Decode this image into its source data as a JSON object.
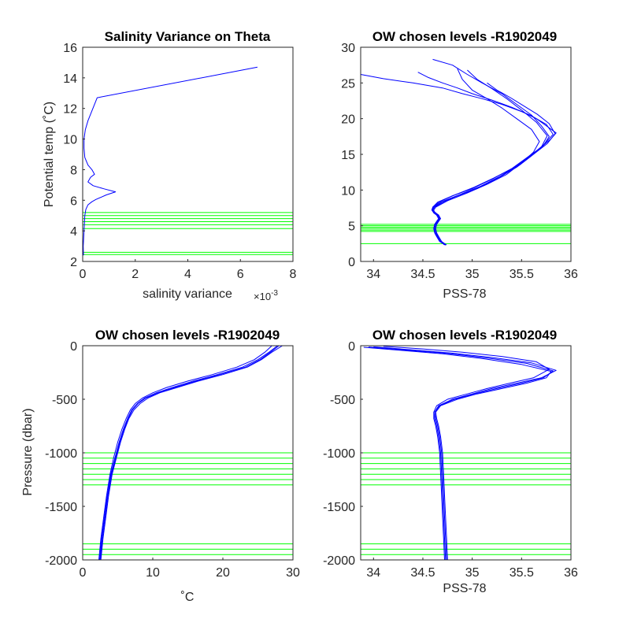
{
  "colors": {
    "profile": "#0000ff",
    "levels": "#00ff00",
    "axes": "#262626"
  },
  "chart_data": [
    {
      "type": "line",
      "title": "Salinity Variance on Theta",
      "xlabel": "salinity variance",
      "xlabel_multiplier": "×10",
      "xlabel_exponent": "-3",
      "ylabel": "Potential temp (˚C)",
      "xlim": [
        0,
        8
      ],
      "ylim": [
        2,
        16
      ],
      "xticks": [
        0,
        2,
        4,
        6,
        8
      ],
      "yticks": [
        2,
        4,
        6,
        8,
        10,
        12,
        14,
        16
      ],
      "grid": false,
      "series": [
        {
          "x": [
            0.03,
            0.02,
            0.05,
            0.08,
            0.12,
            0.2,
            0.35,
            0.5,
            0.7,
            0.9,
            1.25,
            0.8,
            0.4,
            0.2,
            0.3,
            0.45,
            0.35,
            0.2,
            0.08,
            0.05,
            0.05,
            0.1,
            0.2,
            0.55,
            6.65
          ],
          "y": [
            2.4,
            3.0,
            4.0,
            5.0,
            5.4,
            5.7,
            5.9,
            6.05,
            6.2,
            6.35,
            6.55,
            6.75,
            6.95,
            7.2,
            7.5,
            7.7,
            8.0,
            8.3,
            8.8,
            9.4,
            10.0,
            10.6,
            11.2,
            12.7,
            14.7
          ]
        }
      ],
      "levels": [
        2.45,
        2.6,
        4.15,
        4.4,
        4.6,
        4.8,
        5.0,
        5.2
      ]
    },
    {
      "type": "line",
      "title": "OW chosen levels -R1902049",
      "xlabel": "PSS-78",
      "ylabel": "",
      "xlim": [
        33.87,
        36
      ],
      "ylim": [
        0,
        30
      ],
      "xticks": [
        34,
        34.5,
        35,
        35.5,
        36
      ],
      "yticks": [
        0,
        5,
        10,
        15,
        20,
        25,
        30
      ],
      "grid": false,
      "series": [
        {
          "x": [
            34.73,
            34.68,
            34.65,
            34.63,
            34.62,
            34.63,
            34.65,
            34.67,
            34.66,
            34.63,
            34.6,
            34.6,
            34.65,
            34.8,
            35.0,
            35.2,
            35.4,
            35.55,
            35.7,
            35.8,
            35.85,
            35.75,
            35.65,
            35.5,
            35.3,
            35.1,
            34.9,
            34.7,
            34.4,
            34.1,
            33.87
          ],
          "y": [
            2.3,
            2.8,
            3.5,
            4.0,
            4.6,
            5.2,
            5.6,
            6.0,
            6.5,
            6.8,
            7.2,
            7.6,
            8.3,
            9.2,
            10.2,
            11.5,
            13.0,
            14.5,
            16.0,
            17.2,
            18.0,
            19.0,
            20.0,
            21.0,
            22.0,
            22.8,
            23.5,
            24.3,
            25.0,
            25.6,
            26.2
          ]
        },
        {
          "x": [
            34.73,
            34.67,
            34.64,
            34.62,
            34.61,
            34.62,
            34.64,
            34.66,
            34.64,
            34.61,
            34.59,
            34.6,
            34.68,
            34.85,
            35.05,
            35.25,
            35.45,
            35.6,
            35.72,
            35.78,
            35.7,
            35.6,
            35.45,
            35.3,
            35.1,
            34.95,
            34.8,
            34.6
          ],
          "y": [
            2.3,
            2.8,
            3.5,
            4.0,
            4.6,
            5.2,
            5.6,
            6.0,
            6.5,
            6.8,
            7.2,
            7.6,
            8.3,
            9.2,
            10.2,
            11.6,
            13.2,
            14.8,
            16.2,
            17.5,
            19.0,
            20.5,
            22.0,
            23.5,
            25.0,
            26.2,
            27.5,
            28.3
          ]
        },
        {
          "x": [
            34.74,
            34.69,
            34.66,
            34.64,
            34.63,
            34.64,
            34.66,
            34.68,
            34.66,
            34.62,
            34.61,
            34.63,
            34.75,
            34.95,
            35.15,
            35.35,
            35.5,
            35.62,
            35.68,
            35.6,
            35.45,
            35.3,
            35.15,
            35.0,
            34.9,
            34.85
          ],
          "y": [
            2.3,
            2.8,
            3.5,
            4.0,
            4.6,
            5.2,
            5.6,
            6.0,
            6.5,
            6.8,
            7.2,
            7.6,
            8.5,
            9.6,
            10.8,
            12.2,
            13.8,
            15.3,
            16.8,
            18.5,
            20.0,
            21.5,
            22.8,
            24.0,
            25.5,
            27.0
          ]
        },
        {
          "x": [
            34.72,
            34.68,
            34.65,
            34.63,
            34.62,
            34.63,
            34.65,
            34.67,
            34.65,
            34.62,
            34.6,
            34.61,
            34.7,
            34.88,
            35.08,
            35.28,
            35.45,
            35.6,
            35.72,
            35.82,
            35.75,
            35.6,
            35.4,
            35.2,
            35.0,
            34.85,
            34.7,
            34.55,
            34.45
          ],
          "y": [
            2.3,
            2.8,
            3.5,
            4.0,
            4.6,
            5.2,
            5.6,
            6.0,
            6.5,
            6.8,
            7.2,
            7.6,
            8.4,
            9.4,
            10.5,
            11.9,
            13.4,
            14.9,
            16.3,
            17.8,
            19.2,
            20.4,
            21.6,
            22.6,
            23.5,
            24.3,
            25.0,
            25.8,
            26.5
          ]
        },
        {
          "x": [
            34.73,
            34.68,
            34.65,
            34.63,
            34.62,
            34.63,
            34.65,
            34.67,
            34.65,
            34.62,
            34.6,
            34.6,
            34.66,
            34.82,
            35.02,
            35.22,
            35.42,
            35.58,
            35.7,
            35.76,
            35.65,
            35.5,
            35.35,
            35.2,
            35.05,
            34.95
          ],
          "y": [
            2.3,
            2.8,
            3.5,
            4.0,
            4.6,
            5.2,
            5.6,
            6.0,
            6.5,
            6.8,
            7.2,
            7.6,
            8.3,
            9.3,
            10.4,
            11.7,
            13.1,
            14.6,
            16.0,
            17.6,
            19.5,
            21.2,
            22.8,
            24.2,
            25.5,
            26.8
          ]
        },
        {
          "x": [
            34.73,
            34.67,
            34.64,
            34.62,
            34.61,
            34.62,
            34.64,
            34.66,
            34.64,
            34.61,
            34.6,
            34.62,
            34.72,
            34.9,
            35.1,
            35.3,
            35.48,
            35.62,
            35.76,
            35.84,
            35.78,
            35.66,
            35.52,
            35.38,
            35.25,
            35.15
          ],
          "y": [
            2.3,
            2.8,
            3.5,
            4.0,
            4.6,
            5.2,
            5.6,
            6.0,
            6.5,
            6.8,
            7.2,
            7.6,
            8.4,
            9.5,
            10.6,
            12.0,
            13.5,
            15.0,
            16.5,
            17.9,
            19.3,
            20.6,
            21.8,
            23.0,
            24.0,
            25.0
          ]
        }
      ],
      "levels": [
        2.5,
        4.2,
        4.4,
        4.6,
        4.8,
        5.0,
        5.2
      ]
    },
    {
      "type": "line",
      "title": "OW chosen levels -R1902049",
      "xlabel": "˚C",
      "ylabel": "Pressure (dbar)",
      "xlim": [
        0,
        30
      ],
      "ylim": [
        -2000,
        0
      ],
      "xticks": [
        0,
        10,
        20,
        30
      ],
      "yticks": [
        -2000,
        -1500,
        -1000,
        -500,
        0
      ],
      "grid": false,
      "series": [
        {
          "x": [
            2.3,
            2.6,
            3.0,
            3.4,
            3.9,
            4.4,
            5.0,
            5.6,
            6.2,
            6.8,
            7.5,
            8.5,
            10.0,
            12.0,
            15.0,
            18.5,
            22.0,
            24.5,
            26.0,
            27.0
          ],
          "y": [
            -2000,
            -1800,
            -1600,
            -1400,
            -1200,
            -1050,
            -900,
            -780,
            -680,
            -600,
            -540,
            -490,
            -440,
            -390,
            -330,
            -270,
            -200,
            -130,
            -60,
            0
          ]
        },
        {
          "x": [
            2.6,
            2.9,
            3.3,
            3.7,
            4.2,
            4.8,
            5.4,
            6.0,
            6.6,
            7.3,
            8.2,
            9.3,
            11.0,
            13.5,
            16.5,
            20.0,
            23.5,
            25.5,
            27.0,
            28.5
          ],
          "y": [
            -2000,
            -1800,
            -1600,
            -1400,
            -1200,
            -1050,
            -900,
            -780,
            -680,
            -600,
            -540,
            -490,
            -440,
            -390,
            -330,
            -270,
            -200,
            -130,
            -60,
            0
          ]
        },
        {
          "x": [
            2.4,
            2.7,
            3.1,
            3.5,
            4.0,
            4.6,
            5.2,
            5.8,
            6.4,
            7.0,
            7.8,
            8.8,
            10.5,
            12.8,
            15.8,
            19.2,
            22.8,
            25.0,
            26.6,
            27.8
          ],
          "y": [
            -2000,
            -1800,
            -1600,
            -1400,
            -1200,
            -1050,
            -900,
            -780,
            -680,
            -600,
            -540,
            -490,
            -440,
            -390,
            -330,
            -270,
            -200,
            -130,
            -60,
            0
          ]
        },
        {
          "x": [
            2.5,
            2.8,
            3.2,
            3.6,
            4.1,
            4.7,
            5.3,
            5.9,
            6.5,
            7.1,
            7.9,
            9.0,
            10.8,
            13.2,
            16.2,
            19.6,
            23.2,
            25.3,
            26.8,
            28.0
          ],
          "y": [
            -2000,
            -1800,
            -1600,
            -1400,
            -1200,
            -1050,
            -900,
            -780,
            -680,
            -600,
            -540,
            -490,
            -440,
            -390,
            -330,
            -270,
            -200,
            -130,
            -60,
            0
          ]
        }
      ],
      "levels": [
        -1900,
        -1950,
        -1850,
        -1000,
        -1050,
        -1100,
        -1150,
        -1200,
        -1250,
        -1300
      ]
    },
    {
      "type": "line",
      "title": "OW chosen levels -R1902049",
      "xlabel": "PSS-78",
      "ylabel": "",
      "xlim": [
        33.87,
        36
      ],
      "ylim": [
        -2000,
        0
      ],
      "xticks": [
        34,
        34.5,
        35,
        35.5,
        36
      ],
      "yticks": [
        -2000,
        -1500,
        -1000,
        -500,
        0
      ],
      "grid": false,
      "series": [
        {
          "x": [
            34.73,
            34.72,
            34.71,
            34.7,
            34.69,
            34.68,
            34.66,
            34.64,
            34.62,
            34.62,
            34.66,
            34.8,
            35.0,
            35.2,
            35.45,
            35.7,
            35.85,
            35.6,
            35.2,
            34.8,
            34.4,
            34.0
          ],
          "y": [
            -2000,
            -1800,
            -1600,
            -1400,
            -1200,
            -1000,
            -850,
            -750,
            -680,
            -620,
            -560,
            -500,
            -450,
            -400,
            -350,
            -300,
            -230,
            -160,
            -110,
            -70,
            -40,
            -10
          ]
        },
        {
          "x": [
            34.75,
            34.74,
            34.73,
            34.72,
            34.71,
            34.7,
            34.68,
            34.66,
            34.64,
            34.63,
            34.68,
            34.85,
            35.05,
            35.3,
            35.55,
            35.75,
            35.8,
            35.5,
            35.1,
            34.7,
            34.3,
            33.9
          ],
          "y": [
            -2000,
            -1800,
            -1600,
            -1400,
            -1200,
            -1000,
            -850,
            -750,
            -680,
            -620,
            -560,
            -500,
            -450,
            -400,
            -350,
            -300,
            -240,
            -175,
            -120,
            -75,
            -45,
            -15
          ]
        },
        {
          "x": [
            34.72,
            34.71,
            34.7,
            34.69,
            34.68,
            34.67,
            34.65,
            34.63,
            34.61,
            34.61,
            34.64,
            34.75,
            34.95,
            35.15,
            35.38,
            35.62,
            35.78,
            35.65,
            35.3,
            34.9,
            34.5,
            34.1
          ],
          "y": [
            -2000,
            -1800,
            -1600,
            -1400,
            -1200,
            -1000,
            -850,
            -750,
            -680,
            -620,
            -560,
            -500,
            -450,
            -400,
            -350,
            -300,
            -220,
            -150,
            -100,
            -60,
            -30,
            -5
          ]
        },
        {
          "x": [
            34.74,
            34.73,
            34.72,
            34.71,
            34.7,
            34.69,
            34.67,
            34.65,
            34.63,
            34.62,
            34.67,
            34.82,
            35.02,
            35.25,
            35.5,
            35.72,
            35.82,
            35.55,
            35.15,
            34.75,
            34.35,
            33.95
          ],
          "y": [
            -2000,
            -1800,
            -1600,
            -1400,
            -1200,
            -1000,
            -850,
            -750,
            -680,
            -620,
            -560,
            -500,
            -450,
            -400,
            -350,
            -300,
            -235,
            -165,
            -115,
            -72,
            -42,
            -12
          ]
        }
      ],
      "levels": [
        -1900,
        -1950,
        -1850,
        -1000,
        -1050,
        -1100,
        -1150,
        -1200,
        -1250,
        -1300
      ]
    }
  ]
}
